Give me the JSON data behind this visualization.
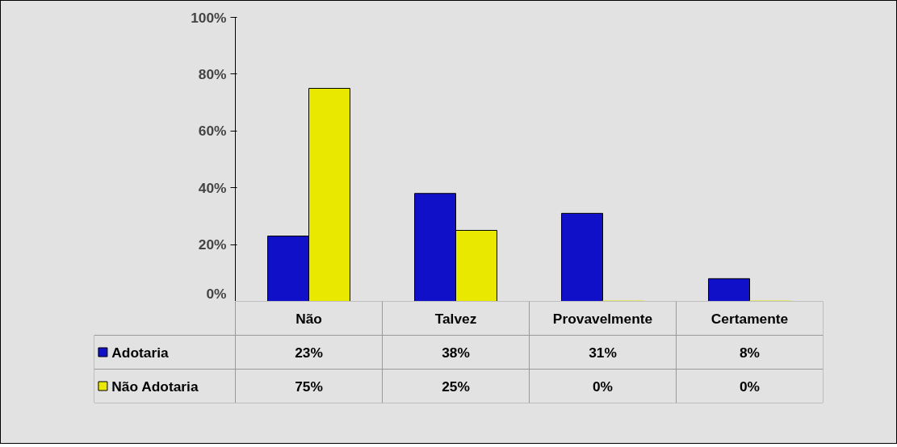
{
  "chart_data": {
    "type": "bar",
    "categories": [
      "Não",
      "Talvez",
      "Provavelmente",
      "Certamente"
    ],
    "series": [
      {
        "name": "Adotaria",
        "color": "#1010c8",
        "values": [
          23,
          38,
          31,
          8
        ],
        "value_labels": [
          "23%",
          "38%",
          "31%",
          "8%"
        ]
      },
      {
        "name": "Não Adotaria",
        "color": "#e8e800",
        "values": [
          75,
          25,
          0,
          0
        ],
        "value_labels": [
          "75%",
          "25%",
          "0%",
          "0%"
        ]
      }
    ],
    "ylim": [
      0,
      100
    ],
    "yticks": [
      {
        "value": 0,
        "label": "0%"
      },
      {
        "value": 20,
        "label": "20%"
      },
      {
        "value": 40,
        "label": "40%"
      },
      {
        "value": 60,
        "label": "60%"
      },
      {
        "value": 80,
        "label": "80%"
      },
      {
        "value": 100,
        "label": "100%"
      }
    ],
    "grid": false,
    "legend": "bottom left"
  }
}
